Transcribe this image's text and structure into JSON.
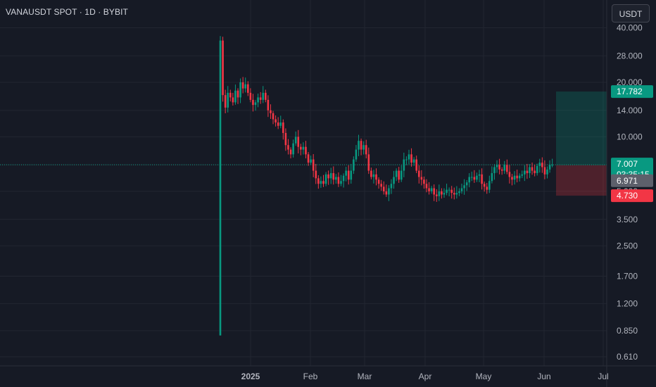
{
  "header": {
    "symbol_label": "VANAUSDT SPOT · 1D · BYBIT",
    "currency_button": "USDT"
  },
  "colors": {
    "background": "#161a25",
    "up": "#089981",
    "down": "#f23645",
    "grid": "#222631",
    "text": "#b2b5be"
  },
  "price_badges": {
    "target": "17.782",
    "last": "7.007",
    "countdown": "03:35:15",
    "entry": "6.971",
    "stop": "4.730"
  },
  "chart_data": {
    "type": "candlestick",
    "y_scale": "log",
    "ylim": [
      0.55,
      42
    ],
    "y_ticks": [
      "40.000",
      "28.000",
      "20.000",
      "14.000",
      "10.000",
      "7.000",
      "5.000",
      "3.500",
      "2.500",
      "1.700",
      "1.200",
      "0.850",
      "0.610"
    ],
    "x_ticks": [
      "2025",
      "Feb",
      "Mar",
      "Apr",
      "May",
      "Jun",
      "Jul"
    ],
    "last_price": 7.007,
    "position": {
      "type": "long",
      "entry": 6.971,
      "target": 17.782,
      "stop": 4.73
    },
    "first_candle": {
      "open": 0.8,
      "high": 36,
      "low": 0.8,
      "close": 34
    },
    "closes": [
      34,
      17,
      14.5,
      17.5,
      16.5,
      15.5,
      18,
      16.5,
      20,
      18.5,
      19.5,
      17.5,
      16,
      15,
      15.5,
      16.5,
      16,
      17.5,
      16,
      14,
      13.5,
      12.5,
      12,
      11.5,
      12,
      10.5,
      9,
      8.5,
      8,
      9.2,
      10,
      8.8,
      8.5,
      8.8,
      8,
      7.2,
      7.5,
      6.5,
      5.9,
      5.5,
      5.7,
      5.5,
      6.2,
      5.9,
      6.3,
      5.8,
      6,
      5.5,
      5.7,
      6.1,
      6.5,
      5.8,
      6.5,
      7.5,
      8.5,
      9.5,
      8.5,
      9,
      8,
      6.5,
      6,
      6.2,
      5.8,
      5.5,
      5.3,
      5,
      4.8,
      5.2,
      5.5,
      6,
      6.5,
      5.8,
      6.5,
      7.5,
      7.5,
      8,
      7.2,
      7.5,
      6.5,
      6,
      5.8,
      5.5,
      5.2,
      5,
      5.2,
      4.8,
      4.7,
      5,
      4.8,
      4.9,
      5.1,
      5.1,
      4.9,
      4.8,
      4.9,
      5,
      5.2,
      5.4,
      5.6,
      6,
      6,
      5.8,
      6.1,
      6.2,
      5.5,
      5.3,
      5.1,
      5.7,
      6.3,
      6.8,
      7,
      6.6,
      6.5,
      7,
      6.4,
      6,
      5.8,
      6.1,
      5.9,
      6.1,
      6.2,
      6.5,
      6.3,
      6.8,
      6.5,
      6.3,
      6.9,
      7.2,
      6.8,
      6.2,
      6.6,
      7,
      7.007
    ]
  }
}
